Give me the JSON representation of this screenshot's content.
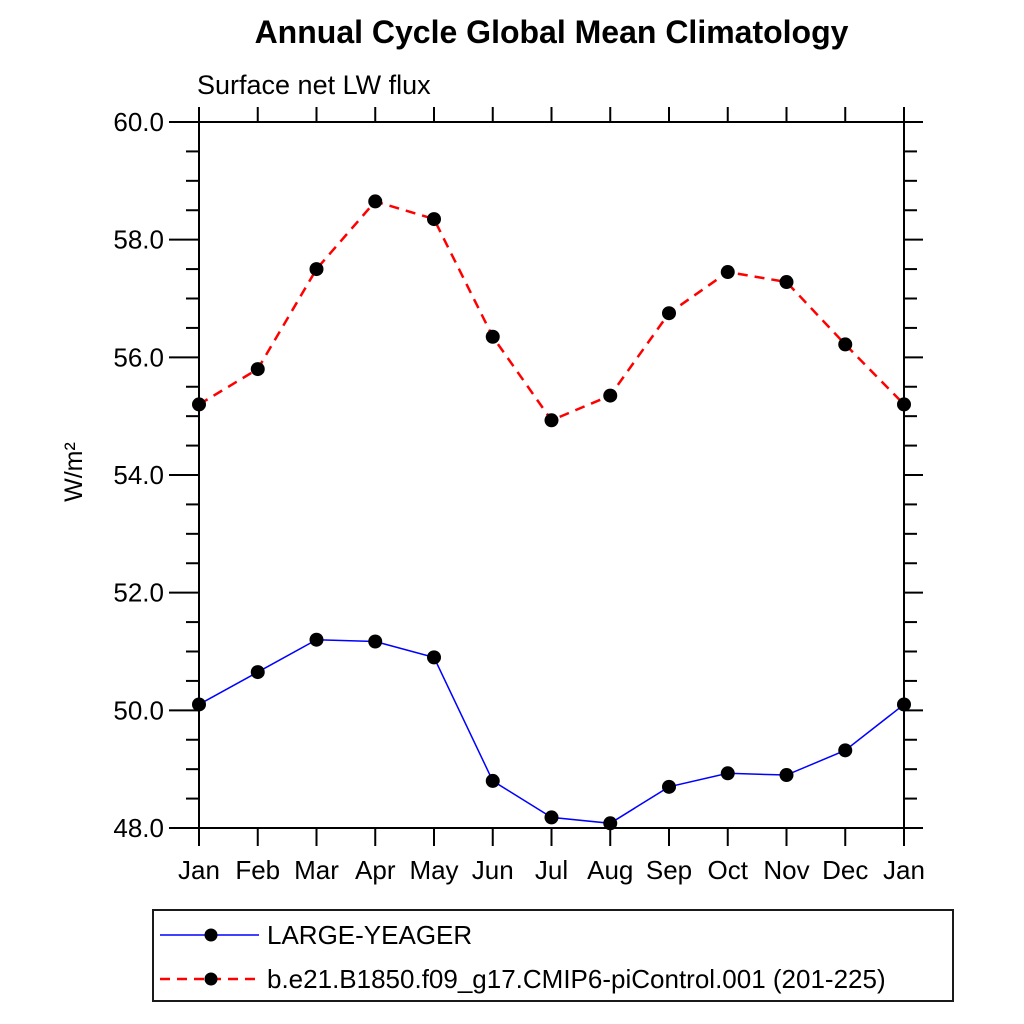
{
  "chart_data": {
    "type": "line",
    "title": "Annual Cycle Global Mean Climatology",
    "subtitle": "Surface net LW flux",
    "ylabel": "W/m²",
    "xlabel": "",
    "categories": [
      "Jan",
      "Feb",
      "Mar",
      "Apr",
      "May",
      "Jun",
      "Jul",
      "Aug",
      "Sep",
      "Oct",
      "Nov",
      "Dec",
      "Jan"
    ],
    "series": [
      {
        "name": "LARGE-YEAGER",
        "color": "#0000ff",
        "style": "solid",
        "marker": "black-dot",
        "values": [
          50.1,
          50.65,
          51.2,
          51.17,
          50.9,
          48.8,
          48.18,
          48.08,
          48.7,
          48.93,
          48.9,
          49.32,
          50.1
        ]
      },
      {
        "name": "b.e21.B1850.f09_g17.CMIP6-piControl.001 (201-225)",
        "color": "#ff0000",
        "style": "dashed",
        "marker": "black-dot",
        "values": [
          55.2,
          55.8,
          57.5,
          58.65,
          58.35,
          56.35,
          54.93,
          55.35,
          56.75,
          57.45,
          57.28,
          56.22,
          55.2
        ]
      }
    ],
    "ylim": [
      48.0,
      60.0
    ],
    "y_major_step": 2.0,
    "y_minor_step": 0.5,
    "y_tick_labels": [
      "48.0",
      "50.0",
      "52.0",
      "54.0",
      "56.0",
      "58.0",
      "60.0"
    ],
    "grid": false,
    "legend_position": "bottom-left-box",
    "marker_color": "#000000"
  }
}
